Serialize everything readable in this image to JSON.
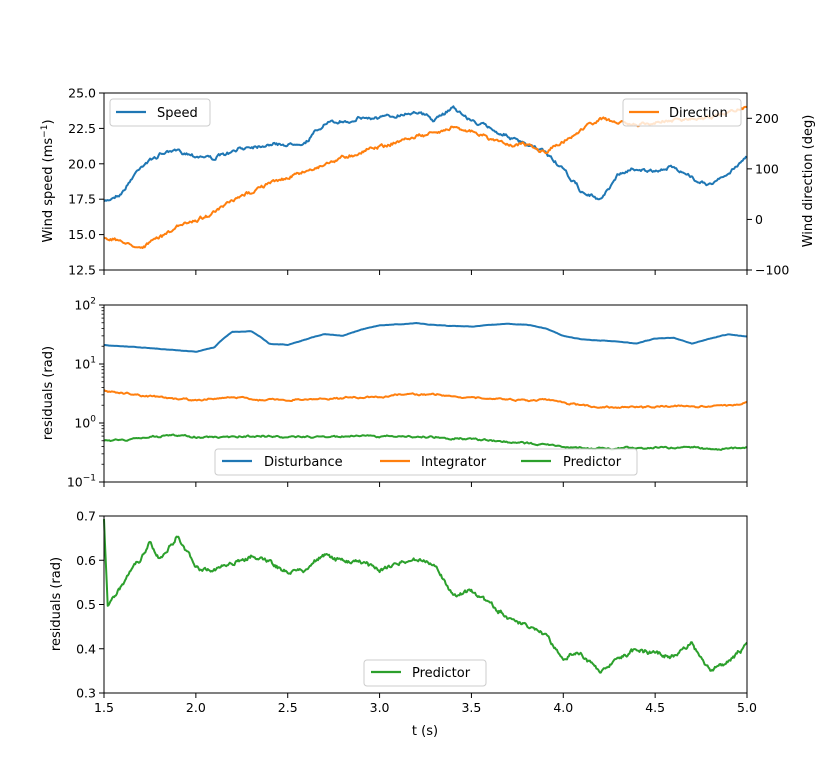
{
  "colors": {
    "blue": "#1f77b4",
    "orange": "#ff7f0e",
    "green": "#2ca02c"
  },
  "chart_data": [
    {
      "type": "line",
      "title": "",
      "xlabel": "",
      "ylabel": "Wind speed (ms",
      "ylabel_sup": "−1",
      "ylabel_end": ")",
      "y2label": "Wind direction (deg)",
      "xlim": [
        1.5,
        5.0
      ],
      "ylim": [
        12.5,
        25.0
      ],
      "y2lim": [
        -100,
        250
      ],
      "yticks": [
        "12.5",
        "15.0",
        "17.5",
        "20.0",
        "22.5",
        "25.0"
      ],
      "y2ticks": [
        "−100",
        "0",
        "100",
        "200"
      ],
      "series": [
        {
          "name": "Speed",
          "axis": "left",
          "x": [
            1.5,
            1.6,
            1.7,
            1.8,
            1.9,
            2.0,
            2.1,
            2.2,
            2.3,
            2.4,
            2.5,
            2.6,
            2.7,
            2.8,
            2.9,
            3.0,
            3.1,
            3.2,
            3.3,
            3.4,
            3.5,
            3.6,
            3.7,
            3.8,
            3.9,
            4.0,
            4.1,
            4.2,
            4.3,
            4.4,
            4.5,
            4.6,
            4.7,
            4.8,
            4.9,
            5.0
          ],
          "values": [
            17.3,
            18.0,
            19.8,
            20.6,
            21.0,
            20.6,
            20.4,
            20.8,
            21.3,
            21.4,
            21.3,
            21.5,
            22.8,
            22.9,
            23.3,
            23.2,
            23.4,
            23.7,
            23.1,
            24.0,
            23.0,
            22.5,
            22.0,
            21.3,
            20.8,
            19.6,
            18.0,
            17.4,
            19.2,
            19.7,
            19.4,
            19.9,
            19.0,
            18.5,
            19.3,
            20.6
          ]
        },
        {
          "name": "Direction",
          "axis": "right",
          "x": [
            1.5,
            1.6,
            1.7,
            1.8,
            1.9,
            2.0,
            2.1,
            2.2,
            2.3,
            2.4,
            2.5,
            2.6,
            2.7,
            2.8,
            2.9,
            3.0,
            3.1,
            3.2,
            3.3,
            3.4,
            3.5,
            3.6,
            3.7,
            3.8,
            3.9,
            4.0,
            4.1,
            4.2,
            4.3,
            4.4,
            4.5,
            4.6,
            4.7,
            4.8,
            4.9,
            5.0
          ],
          "values": [
            -35,
            -45,
            -55,
            -35,
            -15,
            0,
            15,
            35,
            55,
            70,
            85,
            95,
            110,
            125,
            135,
            145,
            155,
            165,
            170,
            185,
            175,
            160,
            150,
            145,
            130,
            150,
            180,
            200,
            190,
            185,
            190,
            195,
            200,
            205,
            215,
            225
          ]
        }
      ],
      "legend": [
        {
          "label": "Speed",
          "placement": "upper-left"
        },
        {
          "label": "Direction",
          "placement": "upper-right"
        }
      ]
    },
    {
      "type": "line",
      "ylabel": "residuals (rad)",
      "yscale": "log",
      "xlim": [
        1.5,
        5.0
      ],
      "ylim": [
        0.1,
        100
      ],
      "yticks": [
        {
          "base": "10",
          "exp": "−1"
        },
        {
          "base": "10",
          "exp": "0"
        },
        {
          "base": "10",
          "exp": "1"
        },
        {
          "base": "10",
          "exp": "2"
        }
      ],
      "series": [
        {
          "name": "Disturbance",
          "x": [
            1.5,
            1.6,
            1.7,
            1.8,
            1.9,
            2.0,
            2.1,
            2.2,
            2.3,
            2.4,
            2.5,
            2.6,
            2.7,
            2.8,
            2.9,
            3.0,
            3.1,
            3.2,
            3.3,
            3.4,
            3.5,
            3.6,
            3.7,
            3.8,
            3.9,
            4.0,
            4.1,
            4.2,
            4.3,
            4.4,
            4.5,
            4.6,
            4.7,
            4.8,
            4.9,
            5.0
          ],
          "values": [
            21,
            20,
            19,
            18,
            17,
            16,
            19,
            35,
            36,
            22,
            21,
            26,
            32,
            30,
            38,
            45,
            47,
            49,
            46,
            44,
            43,
            46,
            48,
            46,
            40,
            30,
            26,
            25,
            24,
            22,
            27,
            28,
            22,
            27,
            32,
            29
          ]
        },
        {
          "name": "Integrator",
          "x": [
            1.5,
            1.6,
            1.7,
            1.8,
            1.9,
            2.0,
            2.1,
            2.2,
            2.3,
            2.4,
            2.5,
            2.6,
            2.7,
            2.8,
            2.9,
            3.0,
            3.1,
            3.2,
            3.3,
            3.4,
            3.5,
            3.6,
            3.7,
            3.8,
            3.9,
            4.0,
            4.1,
            4.2,
            4.3,
            4.4,
            4.5,
            4.6,
            4.7,
            4.8,
            4.9,
            5.0
          ],
          "values": [
            3.6,
            3.3,
            3.0,
            2.8,
            2.6,
            2.4,
            2.6,
            2.7,
            2.6,
            2.5,
            2.4,
            2.5,
            2.6,
            2.6,
            2.7,
            2.8,
            2.9,
            3.0,
            3.1,
            2.9,
            2.8,
            2.6,
            2.5,
            2.4,
            2.4,
            2.2,
            2.0,
            1.9,
            1.9,
            1.9,
            1.9,
            2.0,
            1.9,
            1.9,
            2.0,
            2.2
          ]
        },
        {
          "name": "Predictor",
          "x": [
            1.5,
            1.6,
            1.7,
            1.8,
            1.9,
            2.0,
            2.1,
            2.2,
            2.3,
            2.4,
            2.5,
            2.6,
            2.7,
            2.8,
            2.9,
            3.0,
            3.1,
            3.2,
            3.3,
            3.4,
            3.5,
            3.6,
            3.7,
            3.8,
            3.9,
            4.0,
            4.1,
            4.2,
            4.3,
            4.4,
            4.5,
            4.6,
            4.7,
            4.8,
            4.9,
            5.0
          ],
          "values": [
            0.5,
            0.53,
            0.57,
            0.6,
            0.62,
            0.58,
            0.57,
            0.59,
            0.6,
            0.58,
            0.57,
            0.58,
            0.6,
            0.59,
            0.59,
            0.59,
            0.58,
            0.59,
            0.58,
            0.55,
            0.52,
            0.5,
            0.48,
            0.45,
            0.43,
            0.39,
            0.38,
            0.37,
            0.38,
            0.39,
            0.39,
            0.39,
            0.4,
            0.37,
            0.37,
            0.39
          ]
        }
      ],
      "legend": [
        {
          "label": "Disturbance"
        },
        {
          "label": "Integrator"
        },
        {
          "label": "Predictor"
        }
      ],
      "legend_placement": "lower-center"
    },
    {
      "type": "line",
      "xlabel": "t (s)",
      "ylabel": "residuals (rad)",
      "xlim": [
        1.5,
        5.0
      ],
      "ylim": [
        0.3,
        0.7
      ],
      "xticks": [
        "1.5",
        "2.0",
        "2.5",
        "3.0",
        "3.5",
        "4.0",
        "4.5",
        "5.0"
      ],
      "yticks": [
        "0.3",
        "0.4",
        "0.5",
        "0.6",
        "0.7"
      ],
      "series": [
        {
          "name": "Predictor",
          "x": [
            1.5,
            1.52,
            1.55,
            1.6,
            1.65,
            1.7,
            1.75,
            1.8,
            1.85,
            1.9,
            1.95,
            2.0,
            2.1,
            2.2,
            2.3,
            2.4,
            2.5,
            2.6,
            2.7,
            2.8,
            2.9,
            3.0,
            3.1,
            3.2,
            3.3,
            3.4,
            3.5,
            3.6,
            3.7,
            3.8,
            3.9,
            4.0,
            4.1,
            4.2,
            4.3,
            4.4,
            4.5,
            4.6,
            4.7,
            4.8,
            4.9,
            5.0
          ],
          "values": [
            0.69,
            0.5,
            0.52,
            0.54,
            0.58,
            0.6,
            0.64,
            0.6,
            0.62,
            0.65,
            0.62,
            0.58,
            0.58,
            0.59,
            0.61,
            0.6,
            0.57,
            0.58,
            0.61,
            0.6,
            0.6,
            0.58,
            0.59,
            0.6,
            0.59,
            0.52,
            0.53,
            0.5,
            0.47,
            0.45,
            0.43,
            0.38,
            0.39,
            0.35,
            0.38,
            0.4,
            0.39,
            0.38,
            0.41,
            0.35,
            0.37,
            0.41
          ]
        }
      ],
      "legend": [
        {
          "label": "Predictor"
        }
      ],
      "legend_placement": "lower-center"
    }
  ]
}
